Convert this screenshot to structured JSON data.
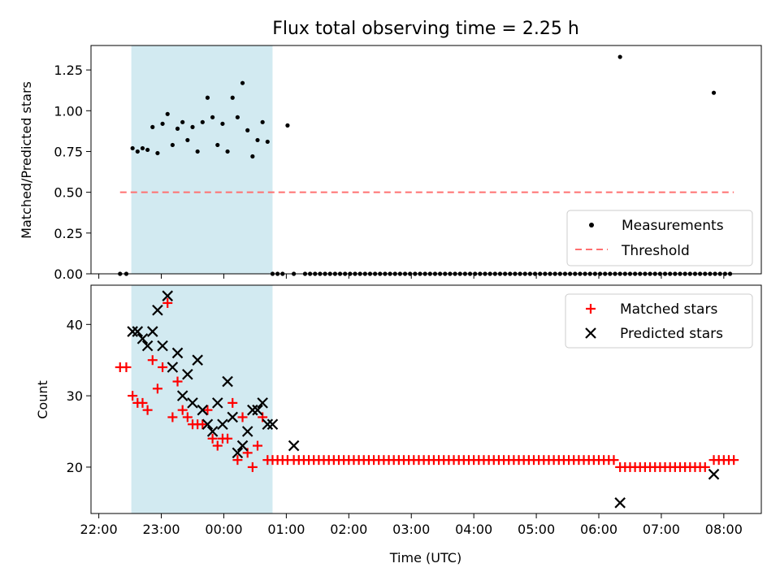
{
  "chart_data": [
    {
      "type": "scatter",
      "title": "Flux total observing time = 2.25 h",
      "xlabel": "",
      "ylabel": "Matched/Predicted stars",
      "xlim": [
        -0.125,
        10.6
      ],
      "ylim": [
        0,
        1.4
      ],
      "yticks": [
        0.0,
        0.25,
        0.5,
        0.75,
        1.0,
        1.25
      ],
      "ytick_labels": [
        "0.00",
        "0.25",
        "0.50",
        "0.75",
        "1.00",
        "1.25"
      ],
      "shaded_span": [
        0.52,
        2.78
      ],
      "shaded_color": "#add8e6",
      "series": [
        {
          "name": "Measurements",
          "marker": "dot",
          "color": "#000000",
          "x": [
            0.34,
            0.44,
            0.54,
            0.62,
            0.7,
            0.78,
            0.86,
            0.94,
            1.02,
            1.1,
            1.18,
            1.26,
            1.34,
            1.42,
            1.5,
            1.58,
            1.66,
            1.74,
            1.82,
            1.9,
            1.98,
            2.06,
            2.14,
            2.22,
            2.3,
            2.38,
            2.46,
            2.54,
            2.62,
            2.7,
            2.78,
            2.86,
            2.94,
            3.02,
            3.12,
            8.34,
            9.84
          ],
          "y": [
            0.0,
            0.0,
            0.77,
            0.75,
            0.77,
            0.76,
            0.9,
            0.74,
            0.92,
            0.98,
            0.79,
            0.89,
            0.93,
            0.82,
            0.9,
            0.75,
            0.93,
            1.08,
            0.96,
            0.79,
            0.92,
            0.75,
            1.08,
            0.96,
            1.17,
            0.88,
            0.72,
            0.82,
            0.93,
            0.81,
            0.0,
            0.0,
            0.0,
            0.91,
            0.0,
            1.33,
            1.11
          ],
          "zeros_every": 0.08,
          "zeros_range": [
            3.3,
            10.16
          ]
        },
        {
          "name": "Threshold",
          "style": "dashed",
          "color": "#ff7070",
          "x": [
            0.34,
            10.16
          ],
          "y": [
            0.5,
            0.5
          ]
        }
      ],
      "legend": "lower-right",
      "legend_labels": [
        "Measurements",
        "Threshold"
      ]
    },
    {
      "type": "scatter",
      "title": "",
      "xlabel": "Time (UTC)",
      "ylabel": "Count",
      "xlim": [
        -0.125,
        10.6
      ],
      "ylim": [
        13.5,
        45.5
      ],
      "yticks": [
        20,
        30,
        40
      ],
      "ytick_labels": [
        "20",
        "30",
        "40"
      ],
      "xticks": [
        0,
        1,
        2,
        3,
        4,
        5,
        6,
        7,
        8,
        9,
        10
      ],
      "xtick_labels": [
        "22:00",
        "23:00",
        "00:00",
        "01:00",
        "02:00",
        "03:00",
        "04:00",
        "05:00",
        "06:00",
        "07:00",
        "08:00"
      ],
      "shaded_span": [
        0.52,
        2.78
      ],
      "shaded_color": "#add8e6",
      "series": [
        {
          "name": "Matched stars",
          "marker": "plus",
          "color": "#ff0000",
          "x": [
            0.34,
            0.44,
            0.54,
            0.62,
            0.7,
            0.78,
            0.86,
            0.94,
            1.02,
            1.1,
            1.18,
            1.26,
            1.34,
            1.42,
            1.5,
            1.58,
            1.66,
            1.74,
            1.82,
            1.9,
            1.98,
            2.06,
            2.14,
            2.22,
            2.3,
            2.38,
            2.46,
            2.54,
            2.62,
            2.7,
            2.78,
            2.86,
            2.94,
            3.02,
            3.12,
            8.34,
            9.84
          ],
          "y": [
            34,
            34,
            30,
            29,
            29,
            28,
            35,
            31,
            34,
            43,
            27,
            32,
            28,
            27,
            26,
            26,
            26,
            28,
            24,
            23,
            24,
            24,
            29,
            21,
            27,
            22,
            20,
            23,
            27,
            21,
            21,
            21,
            21,
            21,
            21,
            20,
            21
          ],
          "tail": [
            {
              "from": 3.2,
              "to": 8.26,
              "step": 0.08,
              "value": 21
            },
            {
              "from": 8.42,
              "to": 9.76,
              "step": 0.08,
              "value": 20
            },
            {
              "from": 9.92,
              "to": 10.16,
              "step": 0.08,
              "value": 21
            }
          ]
        },
        {
          "name": "Predicted stars",
          "marker": "x",
          "color": "#000000",
          "x": [
            0.54,
            0.62,
            0.7,
            0.78,
            0.86,
            0.94,
            1.02,
            1.1,
            1.18,
            1.26,
            1.34,
            1.42,
            1.5,
            1.58,
            1.66,
            1.74,
            1.82,
            1.9,
            1.98,
            2.06,
            2.14,
            2.22,
            2.3,
            2.38,
            2.46,
            2.54,
            2.62,
            2.7,
            2.78,
            3.12,
            8.34,
            9.84
          ],
          "y": [
            39,
            39,
            38,
            37,
            39,
            42,
            37,
            44,
            34,
            36,
            30,
            33,
            29,
            35,
            28,
            26,
            25,
            29,
            26,
            32,
            27,
            22,
            23,
            25,
            28,
            28,
            29,
            26,
            26,
            23,
            15,
            19
          ]
        }
      ],
      "legend": "top-right",
      "legend_labels": [
        "Matched stars",
        "Predicted stars"
      ]
    }
  ]
}
